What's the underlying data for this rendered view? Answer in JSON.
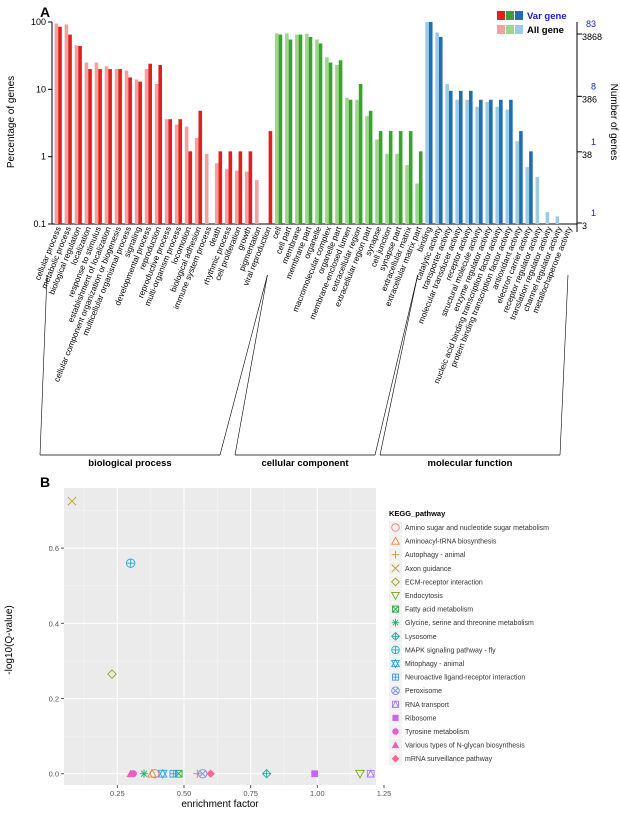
{
  "chart_data": [
    {
      "panel": "A",
      "type": "bar",
      "ylabel": "Percentage of genes",
      "ylabel_right": "Number of genes",
      "yscale": "log",
      "ylim": [
        0.1,
        100
      ],
      "y_ticks": [
        "0.1",
        "1",
        "10",
        "100"
      ],
      "right_ticks": [
        {
          "var": "83",
          "all": "3868"
        },
        {
          "var": "8",
          "all": "386"
        },
        {
          "var": "1",
          "all": "38"
        },
        {
          "var": "1",
          "all": "3"
        }
      ],
      "legend": [
        {
          "name": "Var gene",
          "colors": [
            "#e0201f",
            "#3aa230",
            "#1f6fb0"
          ]
        },
        {
          "name": "All gene",
          "colors": [
            "#f4a0a0",
            "#9fd68c",
            "#9ccbe6"
          ]
        }
      ],
      "groups": [
        {
          "name": "biological process",
          "var_color": "#e0201f",
          "all_color": "#f4a0a0",
          "categories": [
            "cellular process",
            "metabolic process",
            "biological regulation",
            "localization",
            "response to stimulus",
            "establishment of localization",
            "cellular component organization or biogenesis",
            "multicellular organismal process",
            "signaling",
            "developmental process",
            "reproduction",
            "reproductive process",
            "multi-organism process",
            "locomotion",
            "biological adhesion",
            "immune system process",
            "death",
            "rhythmic process",
            "cell proliferation",
            "growth",
            "pigmentation",
            "viral reproduction"
          ],
          "all_values": [
            95,
            92,
            45,
            25,
            25,
            22,
            20,
            19,
            14,
            20,
            12,
            3.6,
            3,
            2.8,
            1.9,
            1.1,
            0.8,
            0.65,
            0.62,
            0.6,
            0.45,
            0
          ],
          "var_values": [
            85,
            65,
            44,
            20,
            20,
            20,
            20,
            15,
            13,
            24,
            23,
            3.6,
            3.6,
            1.2,
            4.8,
            0,
            1.2,
            1.2,
            1.2,
            1.2,
            0,
            2.4
          ]
        },
        {
          "name": "cellular component",
          "var_color": "#3aa230",
          "all_color": "#9fd68c",
          "categories": [
            "cell",
            "cell part",
            "membrane",
            "membrane part",
            "organelle",
            "macromolecular complex",
            "organelle part",
            "membrane-enclosed lumen",
            "extracellular region",
            "extracellular region part",
            "synapse",
            "cell junction",
            "synapse part",
            "extracellular matrix",
            "extracellular matrix part"
          ],
          "all_values": [
            68,
            68,
            65,
            67,
            55,
            30,
            23,
            7.5,
            7,
            4,
            1.8,
            1.1,
            1.1,
            0.75,
            0.4
          ],
          "var_values": [
            65,
            55,
            65,
            60,
            48,
            25,
            27,
            7,
            12,
            4.8,
            2.4,
            2.4,
            2.4,
            2.4,
            1.2
          ]
        },
        {
          "name": "molecular function",
          "var_color": "#1f6fb0",
          "all_color": "#9ccbe6",
          "categories": [
            "binding",
            "catalytic activity",
            "transporter activity",
            "molecular transducer activity",
            "receptor activity",
            "structural molecule activity",
            "enzyme regulator activity",
            "nucleic acid binding transcription factor activity",
            "protein binding transcription factor activity",
            "antioxidant activity",
            "electron carrier activity",
            "receptor regulator activity",
            "translation regulator activity",
            "channel regulator activity",
            "metallochaperone activity"
          ],
          "all_values": [
            100,
            70,
            12,
            7,
            7,
            5.5,
            6.5,
            5.5,
            5,
            1.7,
            0.7,
            0.5,
            0.15,
            0.13,
            0.08
          ],
          "var_values": [
            100,
            60,
            9.5,
            9.5,
            9.5,
            7,
            7,
            7,
            7,
            2.4,
            1.2,
            0,
            0,
            0,
            0
          ]
        }
      ]
    },
    {
      "panel": "B",
      "type": "scatter",
      "xlabel": "enrichment factor",
      "ylabel": "-log10(Q-value)",
      "xlim": [
        0.05,
        1.22
      ],
      "ylim": [
        -0.03,
        0.76
      ],
      "x_ticks": [
        0.25,
        0.5,
        0.75,
        1.0,
        1.25
      ],
      "x_tick_labels": [
        "0.25",
        "0.50",
        "0.75",
        "1.00",
        "1.25"
      ],
      "y_ticks": [
        0.0,
        0.2,
        0.4,
        0.6
      ],
      "y_tick_labels": [
        "0.0",
        "0.2",
        "0.4",
        "0.6"
      ],
      "grid": true,
      "legend_title": "KEGG_pathway",
      "legend_position": "right",
      "series": [
        {
          "name": "Amino sugar and nucleotide sugar metabolism",
          "color": "#f08070",
          "marker": "circle-open",
          "x": 0.39,
          "y": 0.0
        },
        {
          "name": "Aminoacyl-tRNA biosynthesis",
          "color": "#e08840",
          "marker": "triangle-open",
          "x": 0.38,
          "y": 0.0
        },
        {
          "name": "Autophagy - animal",
          "color": "#d09020",
          "marker": "plus",
          "x": 0.55,
          "y": 0.0
        },
        {
          "name": "Axon guidance",
          "color": "#b8a020",
          "marker": "x",
          "x": 0.08,
          "y": 0.725
        },
        {
          "name": "ECM-receptor interaction",
          "color": "#9aa018",
          "marker": "diamond-open",
          "x": 0.23,
          "y": 0.265
        },
        {
          "name": "Endocytosis",
          "color": "#70a818",
          "marker": "triangle-down-open",
          "x": 1.16,
          "y": 0.0
        },
        {
          "name": "Fatty acid metabolism",
          "color": "#2aa838",
          "marker": "square-x",
          "x": 0.48,
          "y": 0.0
        },
        {
          "name": "Glycine, serine and threonine metabolism",
          "color": "#20b070",
          "marker": "asterisk",
          "x": 0.35,
          "y": 0.0
        },
        {
          "name": "Lysosome",
          "color": "#20b0a0",
          "marker": "diamond-plus",
          "x": 0.81,
          "y": 0.0
        },
        {
          "name": "MAPK signaling pathway - fly",
          "color": "#20b0c8",
          "marker": "circle-plus",
          "x": 0.3,
          "y": 0.56
        },
        {
          "name": "Mitophagy - animal",
          "color": "#20a8e0",
          "marker": "star-of-david",
          "x": 0.42,
          "y": 0.0
        },
        {
          "name": "Neuroactive ligand-receptor interaction",
          "color": "#4098e8",
          "marker": "square-plus",
          "x": 0.46,
          "y": 0.0
        },
        {
          "name": "Peroxisome",
          "color": "#7a88f0",
          "marker": "circle-x",
          "x": 0.57,
          "y": 0.0
        },
        {
          "name": "RNA transport",
          "color": "#a878f0",
          "marker": "square-triangle",
          "x": 1.2,
          "y": 0.0
        },
        {
          "name": "Ribosome",
          "color": "#c868e8",
          "marker": "square",
          "x": 0.99,
          "y": 0.0
        },
        {
          "name": "Tyrosine metabolism",
          "color": "#e060d8",
          "marker": "circle",
          "x": 0.31,
          "y": 0.0
        },
        {
          "name": "Various types of N-glycan biosynthesis",
          "color": "#f060b8",
          "marker": "triangle",
          "x": 0.3,
          "y": 0.0
        },
        {
          "name": "mRNA surveillance pathway",
          "color": "#f86890",
          "marker": "diamond",
          "x": 0.6,
          "y": 0.0
        }
      ]
    }
  ]
}
